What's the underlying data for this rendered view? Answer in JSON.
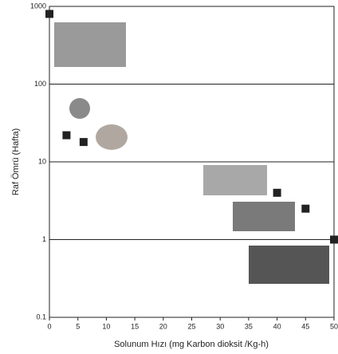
{
  "chart_data": {
    "type": "scatter",
    "x_label": "Solunum Hızı (mg Karbon dioksit /Kg-h)",
    "y_label": "Raf Ömrü (Hafta)",
    "x": [
      0,
      3,
      6,
      40,
      45,
      50
    ],
    "values": [
      800,
      22,
      18,
      4,
      2.5,
      1
    ],
    "color": "#222222",
    "marker": "square",
    "xlim": [
      0,
      50
    ],
    "xticks": [
      0,
      5,
      10,
      15,
      20,
      25,
      30,
      35,
      40,
      45,
      50
    ],
    "ylim": [
      0.1,
      1000
    ],
    "yticks": [
      0.1,
      1,
      10,
      100,
      1000
    ],
    "ylog": true,
    "grid": true
  }
}
